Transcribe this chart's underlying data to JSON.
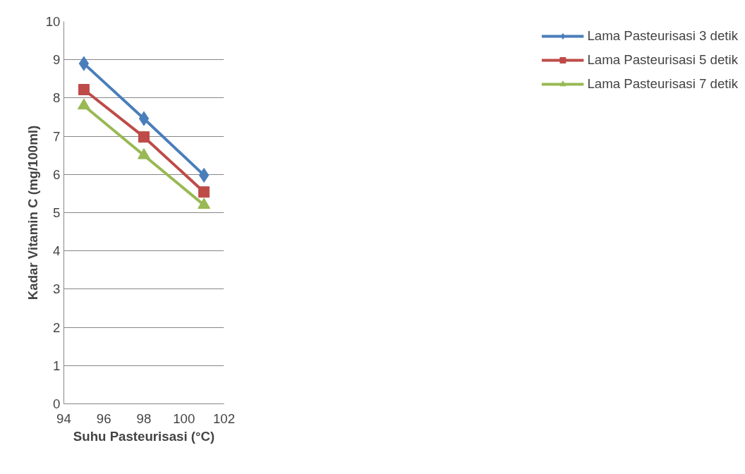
{
  "chart_data": {
    "type": "line",
    "xlabel": "Suhu Pasteurisasi (°C)",
    "ylabel": "Kadar Vitamin C (mg/100ml)",
    "x": [
      95,
      98,
      101
    ],
    "series": [
      {
        "name": "Lama Pasteurisasi 3 detik",
        "color": "#4a7ebb",
        "values": [
          8.9,
          7.46,
          5.98
        ],
        "marker": "diamond"
      },
      {
        "name": "Lama Pasteurisasi 5 detik",
        "color": "#be4b48",
        "values": [
          8.22,
          6.98,
          5.54
        ],
        "marker": "square"
      },
      {
        "name": "Lama Pasteurisasi 7 detik",
        "color": "#98b954",
        "values": [
          7.8,
          6.5,
          5.2
        ],
        "marker": "triangle"
      }
    ],
    "xlim": [
      94,
      102
    ],
    "xticks": [
      94,
      96,
      98,
      100,
      102
    ],
    "ylim": [
      0,
      10
    ],
    "yticks": [
      0,
      1,
      2,
      3,
      4,
      5,
      6,
      7,
      8,
      9,
      10
    ],
    "grid": "y",
    "legend": "right",
    "line_style": "solid"
  }
}
